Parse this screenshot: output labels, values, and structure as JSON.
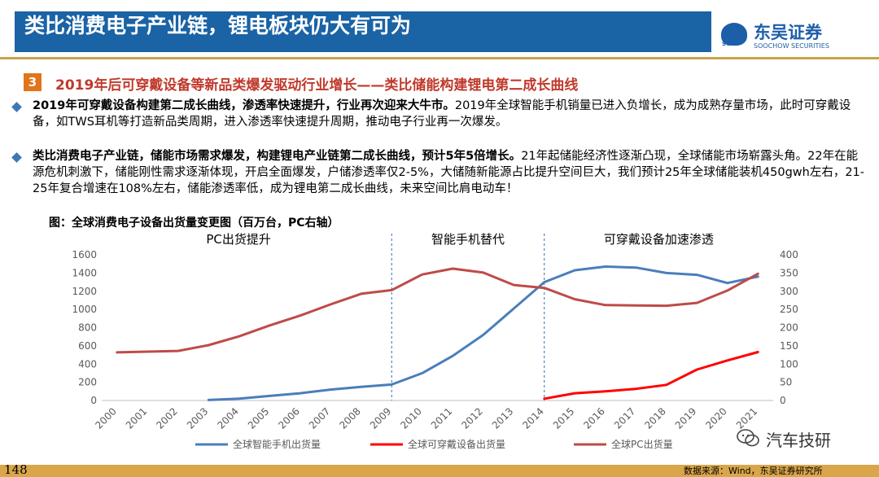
{
  "header": {
    "title": "类比消费电子产业链，锂电板块仍大有可为",
    "logo_cn": "东吴证券",
    "logo_en": "SOOCHOW SECURITIES",
    "logo_mark": "SCS"
  },
  "section": {
    "number": "3",
    "title": "2019年后可穿戴设备等新品类爆发驱动行业增长——类比储能构建锂电第二成长曲线"
  },
  "bullets": [
    {
      "bold": "2019年可穿戴设备构建第二成长曲线，渗透率快速提升，行业再次迎来大牛市。",
      "text": "2019年全球智能手机销量已进入负增长，成为成熟存量市场，此时可穿戴设备，如TWS耳机等打造新品类周期，进入渗透率快速提升周期，推动电子行业再一次爆发。"
    },
    {
      "bold": "类比消费电子产业链，储能市场需求爆发，构建锂电产业链第二成长曲线，预计5年5倍增长。",
      "text": "21年起储能经济性逐渐凸现，全球储能市场崭露头角。22年在能源危机刺激下，储能刚性需求逐渐体现，开启全面爆发，户储渗透率仅2-5%，大储随新能源占比提升空间巨大，我们预计25年全球储能装机450gwh左右，21-25年复合增速在108%左右，储能渗透率低，成为锂电第二成长曲线，未来空间比肩电动车！"
    }
  ],
  "figure_caption": "图：全球消费电子设备出货量变更图（百万台，PC右轴）",
  "chart_data": {
    "type": "line",
    "title": "",
    "x": [
      "2000",
      "2001",
      "2002",
      "2003",
      "2004",
      "2005",
      "2006",
      "2007",
      "2008",
      "2009",
      "2010",
      "2011",
      "2012",
      "2013",
      "2014",
      "2015",
      "2016",
      "2017",
      "2018",
      "2019",
      "2020",
      "2021"
    ],
    "ylim": [
      0,
      1600
    ],
    "y_ticks": [
      0,
      200,
      400,
      600,
      800,
      1000,
      1200,
      1400,
      1600
    ],
    "y2lim": [
      0,
      400
    ],
    "y2_ticks": [
      0,
      50,
      100,
      150,
      200,
      250,
      300,
      350,
      400
    ],
    "grid": false,
    "legend_position": "bottom",
    "annotations": [
      {
        "text": "PC出货提升"
      },
      {
        "text": "智能手机替代"
      },
      {
        "text": "可穿戴设备加速渗透"
      }
    ],
    "dividers_at": [
      "2009",
      "2014"
    ],
    "series": [
      {
        "name": "全球智能手机出货量",
        "color": "#4a7ebb",
        "axis": "left",
        "values": [
          null,
          null,
          null,
          5,
          20,
          50,
          80,
          120,
          150,
          175,
          300,
          490,
          720,
          1010,
          1300,
          1430,
          1470,
          1460,
          1400,
          1380,
          1290,
          1360
        ]
      },
      {
        "name": "全球可穿戴设备出货量",
        "color": "#ff0000",
        "axis": "right",
        "values": [
          null,
          null,
          null,
          null,
          null,
          null,
          null,
          null,
          null,
          null,
          null,
          null,
          null,
          null,
          5,
          20,
          25,
          32,
          43,
          85,
          110,
          133
        ]
      },
      {
        "name": "全球PC出货量",
        "color": "#be4b48",
        "axis": "right",
        "values": [
          132,
          134,
          136,
          152,
          176,
          206,
          233,
          264,
          293,
          303,
          346,
          362,
          351,
          317,
          309,
          278,
          262,
          261,
          260,
          268,
          302,
          348
        ]
      }
    ]
  },
  "watermark": "汽车技研",
  "footer": {
    "page_number": "148",
    "source": "数据来源：Wind，东吴证券研究所"
  }
}
